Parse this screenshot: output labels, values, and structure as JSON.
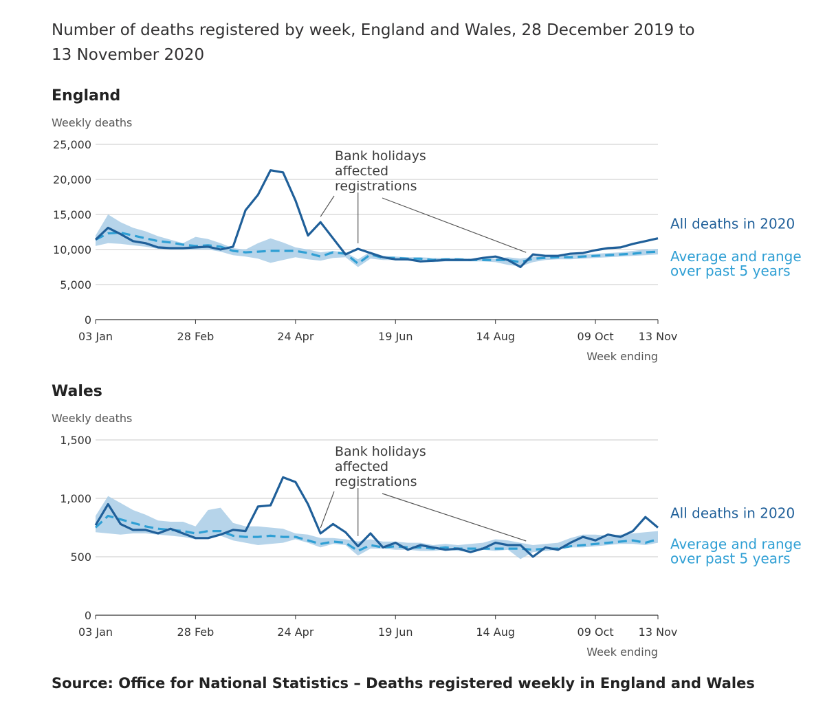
{
  "title": "Number of deaths registered by week, England and Wales, 28 December 2019 to 13 November 2020",
  "source": "Source: Office for National Statistics – Deaths registered weekly in England and Wales",
  "colors": {
    "all_deaths": "#1f5f99",
    "average": "#2f9fd4",
    "range": "#a9cde6"
  },
  "chart_data": [
    {
      "type": "line",
      "title": "England",
      "ylabel": "Weekly deaths",
      "xlabel": "Week ending",
      "ylim": [
        0,
        25000
      ],
      "yticks": [
        0,
        5000,
        10000,
        15000,
        20000,
        25000
      ],
      "ytick_labels": [
        "0",
        "5,000",
        "10,000",
        "15,000",
        "20,000",
        "25,000"
      ],
      "xtick_labels": [
        {
          "index": 0,
          "label": "03 Jan"
        },
        {
          "index": 8,
          "label": "28 Feb"
        },
        {
          "index": 16,
          "label": "24 Apr"
        },
        {
          "index": 24,
          "label": "19 Jun"
        },
        {
          "index": 32,
          "label": "14 Aug"
        },
        {
          "index": 40,
          "label": "09 Oct"
        },
        {
          "index": 45,
          "label": "13 Nov"
        }
      ],
      "grid": true,
      "annotation": "Bank holidays affected registrations",
      "annotation_points": [
        18,
        21,
        35
      ],
      "series": [
        {
          "name": "All deaths in 2020",
          "values": [
            11400,
            13100,
            12200,
            11200,
            10900,
            10300,
            10200,
            10200,
            10300,
            10400,
            10000,
            10400,
            15600,
            17800,
            21300,
            21000,
            17000,
            12000,
            13900,
            11600,
            9300,
            10100,
            9500,
            8900,
            8600,
            8600,
            8300,
            8400,
            8500,
            8500,
            8500,
            8800,
            9000,
            8500,
            7500,
            9300,
            9100,
            9100,
            9400,
            9500,
            9900,
            10200,
            10300,
            10800,
            11200,
            11600
          ]
        },
        {
          "name": "Average and range over past 5 years",
          "values": [
            11400,
            12300,
            12400,
            12000,
            11600,
            11200,
            11000,
            10700,
            10500,
            10600,
            10400,
            9800,
            9600,
            9700,
            9800,
            9800,
            9800,
            9500,
            9000,
            9600,
            9400,
            8000,
            9300,
            8800,
            8800,
            8700,
            8700,
            8500,
            8600,
            8600,
            8500,
            8500,
            8500,
            8500,
            8200,
            8700,
            8800,
            8900,
            8900,
            9000,
            9100,
            9200,
            9300,
            9400,
            9600,
            9700
          ],
          "range_low": [
            10500,
            10900,
            10800,
            10600,
            10400,
            10100,
            10000,
            10000,
            10000,
            10000,
            9700,
            9200,
            9000,
            8700,
            8100,
            8500,
            8900,
            8600,
            8400,
            8800,
            8900,
            7500,
            8700,
            8500,
            8500,
            8400,
            8400,
            8200,
            8300,
            8300,
            8300,
            8300,
            8200,
            7800,
            7600,
            8200,
            8500,
            8600,
            8600,
            8700,
            8800,
            8900,
            9000,
            9100,
            9200,
            9300
          ],
          "range_high": [
            12000,
            15000,
            13900,
            13100,
            12600,
            11900,
            11400,
            10900,
            11800,
            11500,
            10900,
            10200,
            10000,
            10900,
            11600,
            11000,
            10300,
            10000,
            9600,
            9800,
            9600,
            8600,
            9700,
            9100,
            9000,
            8900,
            8900,
            8800,
            8800,
            8800,
            8700,
            8700,
            8700,
            8900,
            8700,
            9000,
            9000,
            9100,
            9200,
            9300,
            9400,
            9500,
            9600,
            9800,
            10000,
            10100
          ]
        }
      ]
    },
    {
      "type": "line",
      "title": "Wales",
      "ylabel": "Weekly deaths",
      "xlabel": "Week ending",
      "ylim": [
        0,
        1500
      ],
      "yticks": [
        0,
        500,
        1000,
        1500
      ],
      "ytick_labels": [
        "0",
        "500",
        "1,000",
        "1,500"
      ],
      "xtick_labels": [
        {
          "index": 0,
          "label": "03 Jan"
        },
        {
          "index": 8,
          "label": "28 Feb"
        },
        {
          "index": 16,
          "label": "24 Apr"
        },
        {
          "index": 24,
          "label": "19 Jun"
        },
        {
          "index": 32,
          "label": "14 Aug"
        },
        {
          "index": 40,
          "label": "09 Oct"
        },
        {
          "index": 45,
          "label": "13 Nov"
        }
      ],
      "grid": true,
      "annotation": "Bank holidays affected registrations",
      "annotation_points": [
        18,
        21,
        35
      ],
      "series": [
        {
          "name": "All deaths in 2020",
          "values": [
            770,
            950,
            780,
            730,
            730,
            700,
            740,
            700,
            660,
            660,
            690,
            730,
            720,
            930,
            940,
            1180,
            1140,
            950,
            700,
            780,
            710,
            590,
            700,
            580,
            620,
            560,
            600,
            580,
            560,
            570,
            540,
            570,
            620,
            600,
            600,
            500,
            580,
            560,
            620,
            670,
            640,
            690,
            670,
            720,
            840,
            750
          ]
        },
        {
          "name": "Average and range over past 5 years",
          "values": [
            750,
            850,
            820,
            790,
            760,
            740,
            730,
            720,
            700,
            720,
            720,
            680,
            670,
            670,
            680,
            670,
            670,
            640,
            610,
            630,
            620,
            550,
            600,
            580,
            590,
            580,
            580,
            570,
            580,
            570,
            570,
            570,
            570,
            570,
            570,
            560,
            570,
            570,
            590,
            600,
            610,
            620,
            630,
            640,
            620,
            650
          ],
          "range_low": [
            710,
            700,
            690,
            700,
            700,
            690,
            680,
            670,
            650,
            660,
            680,
            640,
            620,
            600,
            610,
            620,
            650,
            620,
            580,
            610,
            600,
            510,
            570,
            570,
            560,
            560,
            550,
            550,
            560,
            550,
            540,
            560,
            550,
            560,
            480,
            540,
            550,
            560,
            580,
            580,
            590,
            600,
            610,
            610,
            600,
            620
          ],
          "range_high": [
            850,
            1020,
            960,
            900,
            860,
            810,
            800,
            800,
            760,
            900,
            920,
            790,
            760,
            760,
            750,
            740,
            700,
            690,
            660,
            660,
            650,
            630,
            650,
            630,
            630,
            620,
            620,
            600,
            610,
            600,
            610,
            620,
            650,
            640,
            620,
            600,
            610,
            620,
            660,
            690,
            690,
            680,
            690,
            700,
            710,
            720
          ]
        }
      ]
    }
  ]
}
